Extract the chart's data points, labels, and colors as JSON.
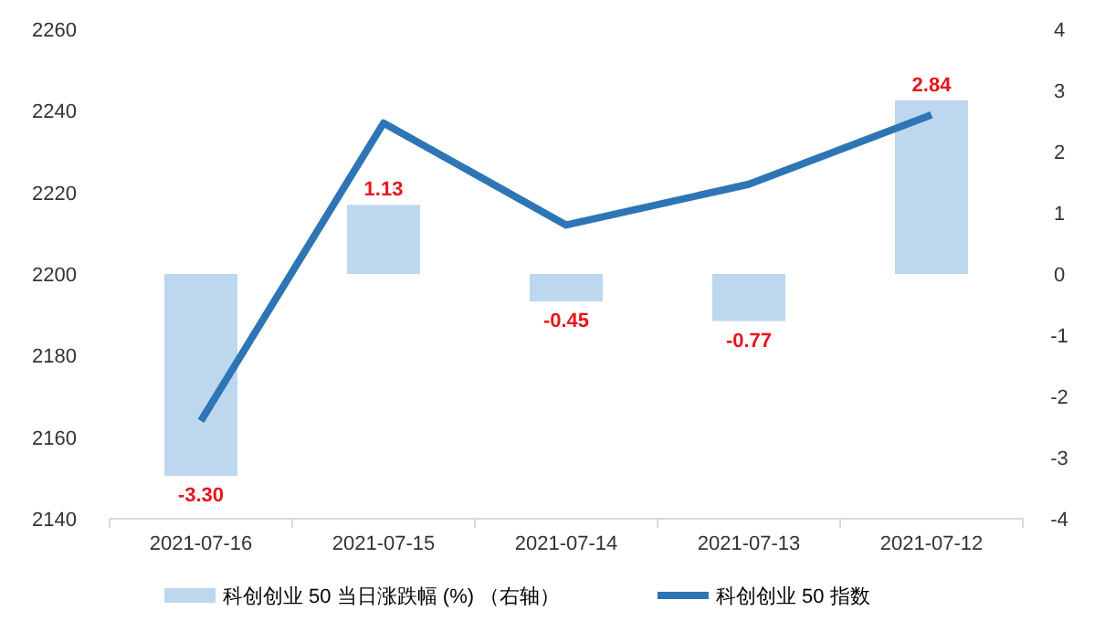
{
  "chart_data": {
    "type": "bar",
    "categories": [
      "2021-07-16",
      "2021-07-15",
      "2021-07-14",
      "2021-07-13",
      "2021-07-12"
    ],
    "series": [
      {
        "name": "科创创业 50 当日涨跌幅 (%) （右轴）",
        "axis": "y2",
        "color": "#bdd7ee",
        "values": [
          -3.3,
          1.13,
          -0.45,
          -0.77,
          2.84
        ],
        "value_labels": [
          "-3.30",
          "1.13",
          "-0.45",
          "-0.77",
          "2.84"
        ]
      },
      {
        "name": "科创创业 50 指数",
        "type": "line",
        "axis": "y",
        "color": "#2e75b6",
        "values": [
          2164,
          2237,
          2212,
          2222,
          2239
        ]
      }
    ],
    "ylim": [
      2140,
      2260
    ],
    "yticks": [
      2140,
      2160,
      2180,
      2200,
      2220,
      2240,
      2260
    ],
    "y2lim": [
      -4,
      4
    ],
    "y2ticks": [
      -4,
      -3,
      -2,
      -1,
      0,
      1,
      2,
      3,
      4
    ],
    "legend": "bottom",
    "grid": false
  }
}
